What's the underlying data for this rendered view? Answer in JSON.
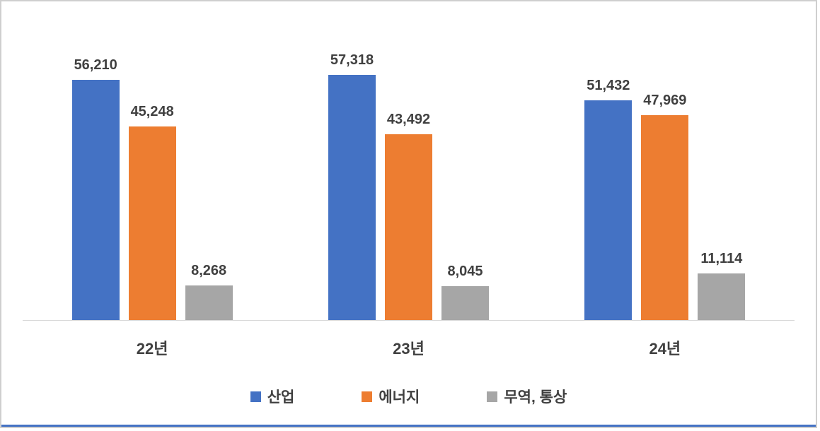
{
  "chart_data": {
    "type": "bar",
    "categories": [
      "22년",
      "23년",
      "24년"
    ],
    "series": [
      {
        "name": "산업",
        "color": "#4472C4",
        "values": [
          56210,
          57318,
          51432
        ]
      },
      {
        "name": "에너지",
        "color": "#ED7D31",
        "values": [
          45248,
          43492,
          47969
        ]
      },
      {
        "name": "무역, 통상",
        "color": "#A6A6A6",
        "values": [
          8268,
          8045,
          11114
        ]
      }
    ],
    "data_labels": [
      [
        "56,210",
        "57,318",
        "51,432"
      ],
      [
        "45,248",
        "43,492",
        "47,969"
      ],
      [
        "8,268",
        "8,045",
        "11,114"
      ]
    ],
    "title": "",
    "xlabel": "",
    "ylabel": "",
    "ylim": [
      0,
      60000
    ],
    "grid": false,
    "legend_position": "bottom",
    "data_labels_visible": true
  },
  "styles": {
    "axis_line_color": "#d9d9d9",
    "label_color": "#404040",
    "frame_border_color": "#cfcfcf",
    "bottom_accent_color": "#4472C4",
    "background_color": "#ffffff"
  }
}
